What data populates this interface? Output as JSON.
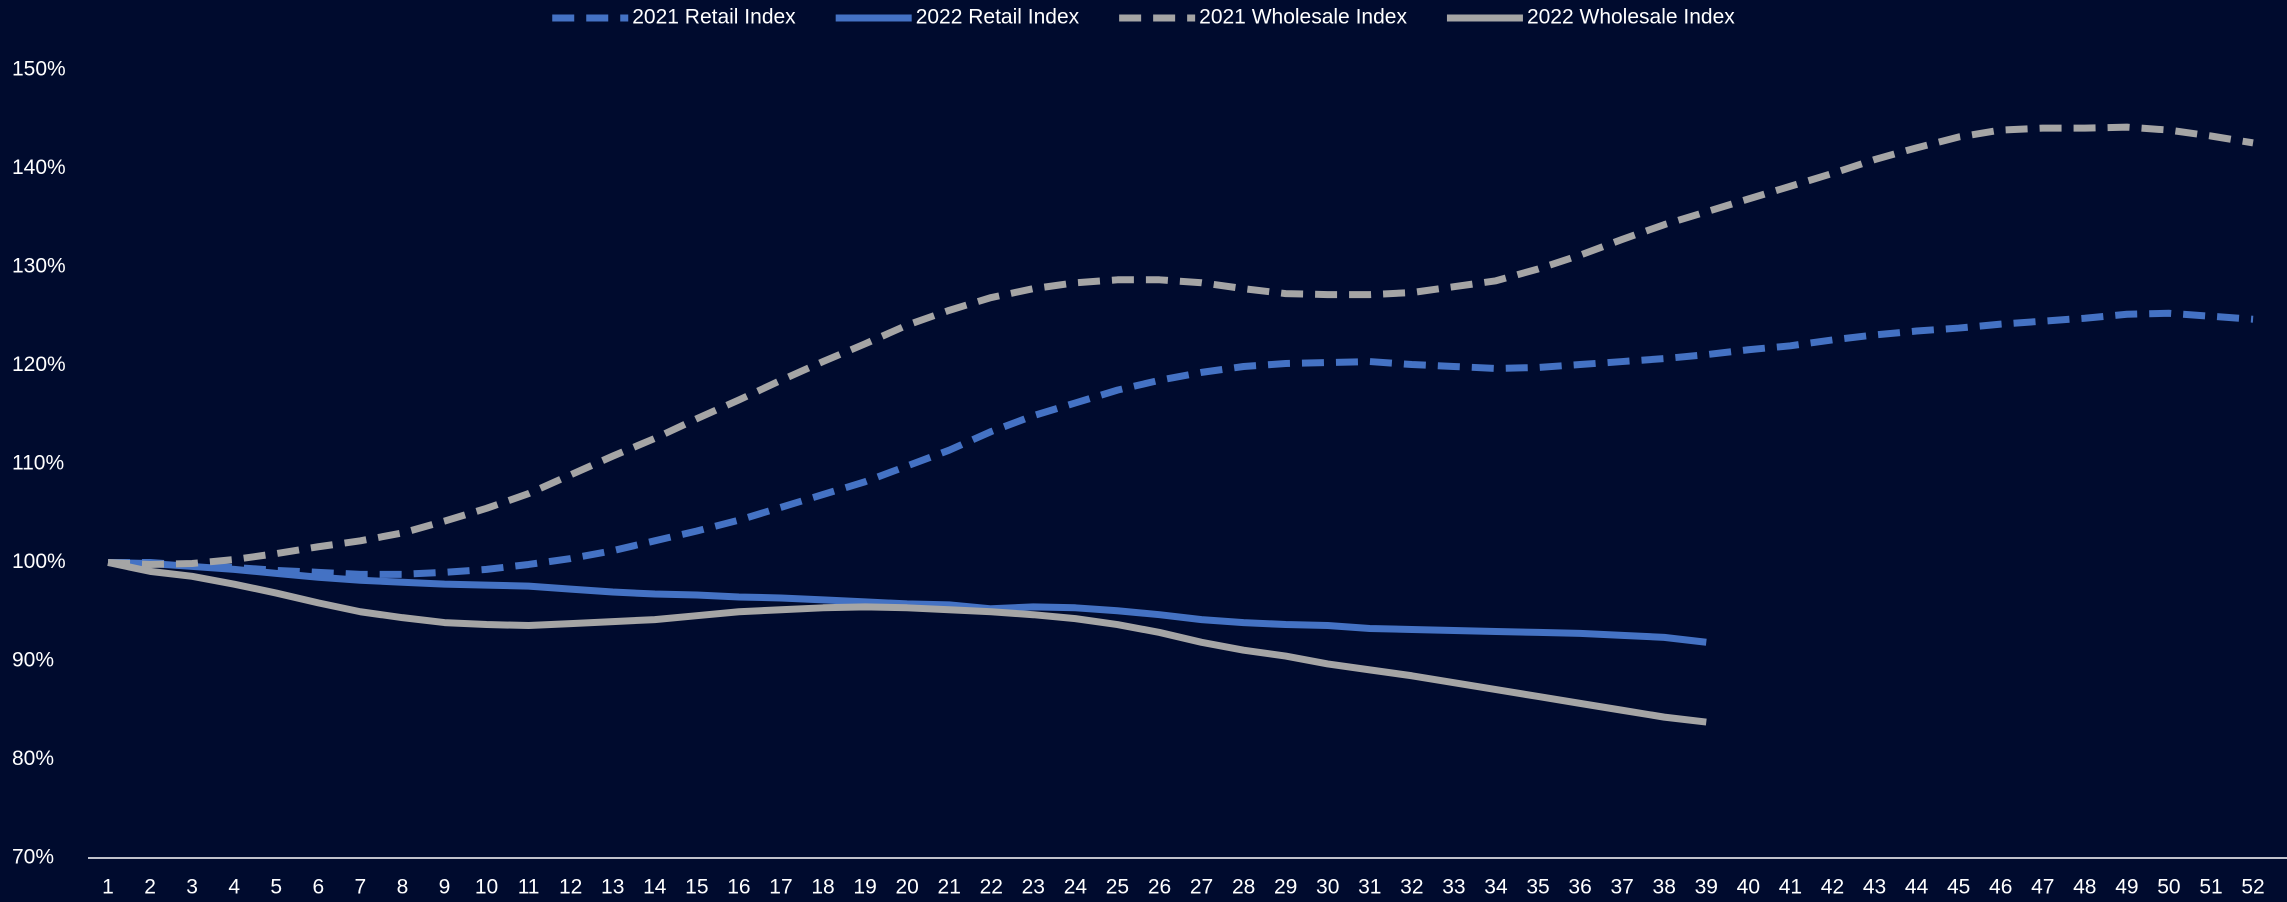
{
  "chart_data": {
    "type": "line",
    "categories": [
      1,
      2,
      3,
      4,
      5,
      6,
      7,
      8,
      9,
      10,
      11,
      12,
      13,
      14,
      15,
      16,
      17,
      18,
      19,
      20,
      21,
      22,
      23,
      24,
      25,
      26,
      27,
      28,
      29,
      30,
      31,
      32,
      33,
      34,
      35,
      36,
      37,
      38,
      39,
      40,
      41,
      42,
      43,
      44,
      45,
      46,
      47,
      48,
      49,
      50,
      51,
      52
    ],
    "series": [
      {
        "name": "2021 Retail Index",
        "color": "#4472c4",
        "dashed": true,
        "values": [
          100,
          100,
          99.7,
          99.5,
          99.2,
          99,
          98.8,
          98.8,
          99,
          99.3,
          99.8,
          100.4,
          101.2,
          102.2,
          103.2,
          104.3,
          105.6,
          106.9,
          108.2,
          109.8,
          111.4,
          113.3,
          114.9,
          116.2,
          117.5,
          118.5,
          119.3,
          119.9,
          120.2,
          120.3,
          120.4,
          120.1,
          119.9,
          119.7,
          119.8,
          120.1,
          120.4,
          120.7,
          121.1,
          121.6,
          122,
          122.6,
          123.1,
          123.5,
          123.8,
          124.2,
          124.5,
          124.8,
          125.2,
          125.3,
          125,
          124.7
        ]
      },
      {
        "name": "2022 Retail Index",
        "color": "#4472c4",
        "dashed": false,
        "values": [
          100,
          99.9,
          99.6,
          99.3,
          98.9,
          98.5,
          98.2,
          98,
          97.8,
          97.7,
          97.6,
          97.3,
          97,
          96.8,
          96.7,
          96.5,
          96.4,
          96.2,
          96,
          95.8,
          95.7,
          95.3,
          95.5,
          95.4,
          95.1,
          94.7,
          94.2,
          93.9,
          93.7,
          93.6,
          93.3,
          93.2,
          93.1,
          93,
          92.9,
          92.8,
          92.6,
          92.4,
          91.9,
          null,
          null,
          null,
          null,
          null,
          null,
          null,
          null,
          null,
          null,
          null,
          null,
          null
        ]
      },
      {
        "name": "2021 Wholesale Index",
        "color": "#a5a5a5",
        "dashed": true,
        "values": [
          100,
          99.8,
          99.9,
          100.3,
          100.9,
          101.6,
          102.2,
          103,
          104.2,
          105.5,
          107,
          108.9,
          110.8,
          112.6,
          114.6,
          116.5,
          118.5,
          120.4,
          122.2,
          124.1,
          125.6,
          126.9,
          127.8,
          128.4,
          128.7,
          128.7,
          128.4,
          127.8,
          127.3,
          127.2,
          127.2,
          127.4,
          128,
          128.6,
          129.8,
          131.2,
          132.8,
          134.3,
          135.6,
          136.9,
          138.2,
          139.5,
          140.9,
          142.1,
          143.2,
          143.9,
          144.1,
          144.1,
          144.2,
          143.9,
          143.3,
          142.6
        ]
      },
      {
        "name": "2022 Wholesale Index",
        "color": "#a5a5a5",
        "dashed": false,
        "values": [
          100,
          99.1,
          98.6,
          97.8,
          96.9,
          95.9,
          95,
          94.4,
          93.9,
          93.7,
          93.6,
          93.8,
          94,
          94.2,
          94.6,
          95,
          95.2,
          95.4,
          95.5,
          95.4,
          95.2,
          95,
          94.7,
          94.3,
          93.7,
          92.9,
          91.9,
          91.1,
          90.5,
          89.7,
          89.1,
          88.5,
          87.8,
          87.1,
          86.4,
          85.7,
          85,
          84.3,
          83.8,
          null,
          null,
          null,
          null,
          null,
          null,
          null,
          null,
          null,
          null,
          null,
          null,
          null
        ]
      }
    ],
    "ylim": [
      70,
      150
    ],
    "yticks": [
      {
        "value": 70,
        "label": "70%"
      },
      {
        "value": 80,
        "label": "80%"
      },
      {
        "value": 90,
        "label": "90%"
      },
      {
        "value": 100,
        "label": "100%"
      },
      {
        "value": 110,
        "label": "110%"
      },
      {
        "value": 120,
        "label": "120%"
      },
      {
        "value": 130,
        "label": "130%"
      },
      {
        "value": 140,
        "label": "140%"
      },
      {
        "value": 150,
        "label": "150%"
      }
    ],
    "grid": false,
    "legend": "top"
  }
}
